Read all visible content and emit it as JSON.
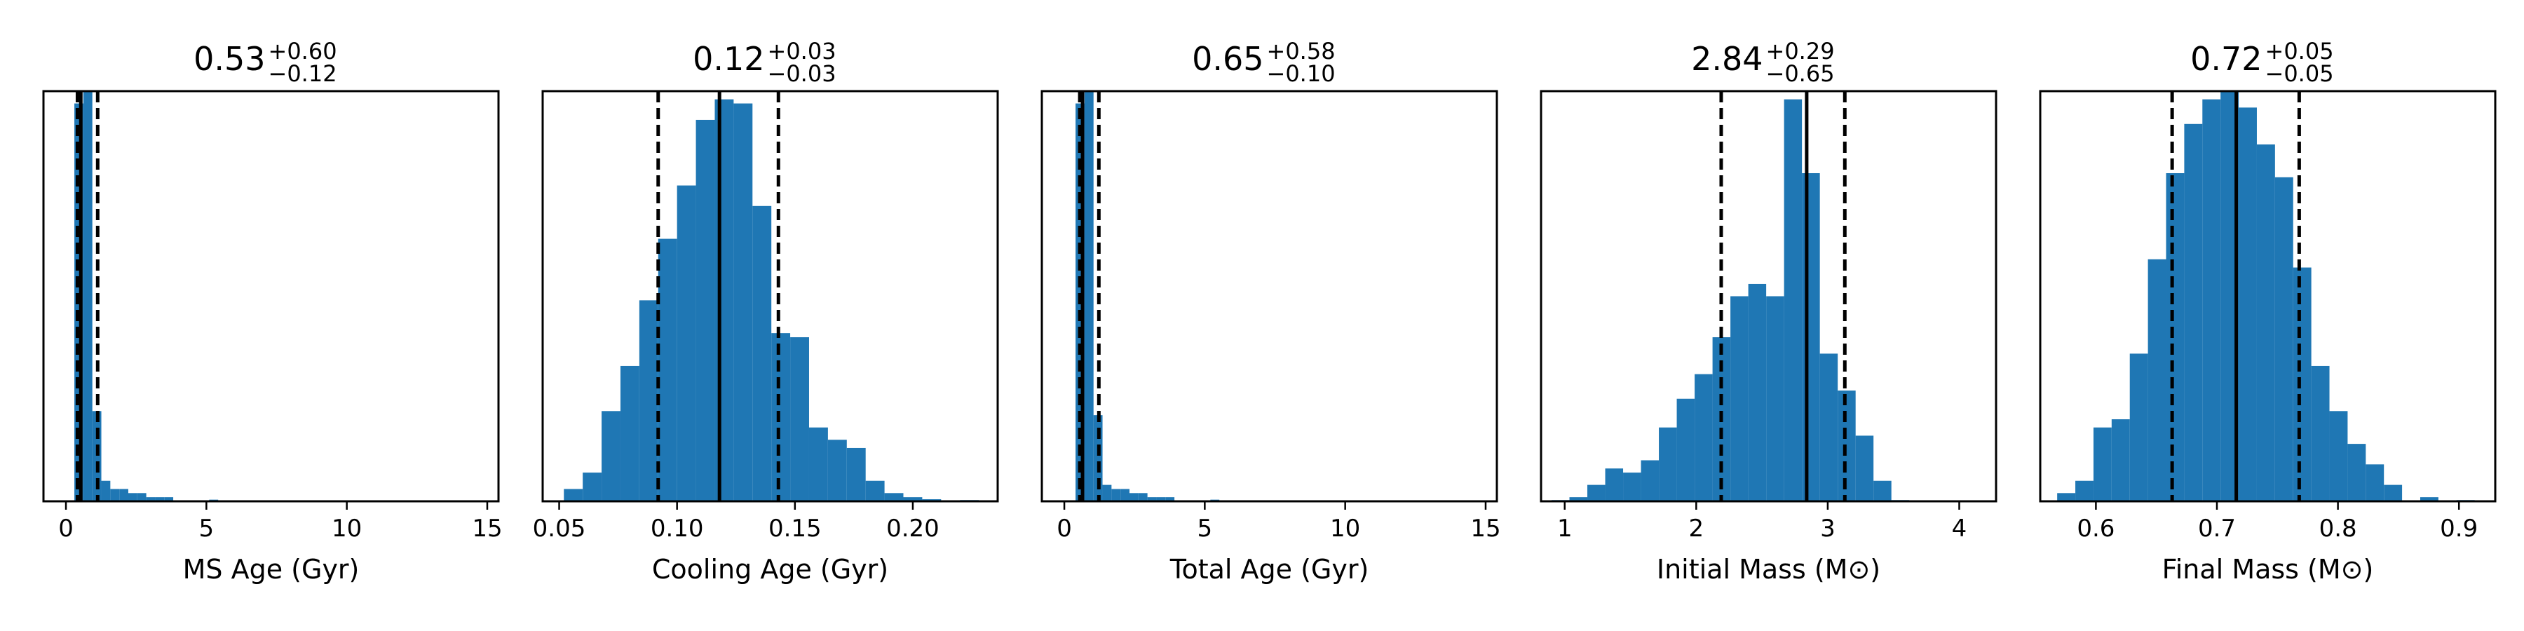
{
  "chart_data": [
    {
      "type": "histogram",
      "title": {
        "value": "0.53",
        "plus": "+0.60",
        "minus": "−0.12"
      },
      "xlabel": "MS Age (Gyr)",
      "xlim": [
        -0.8,
        15.4
      ],
      "ylim": [
        0,
        1.0
      ],
      "xticks": [
        0,
        5,
        10,
        15
      ],
      "xtick_labels": [
        "0",
        "5",
        "10",
        "15"
      ],
      "bin_edges": [
        0.3,
        0.62,
        0.94,
        1.26,
        1.58,
        1.9,
        2.22,
        2.54,
        2.86,
        3.18,
        3.5,
        3.82,
        4.14,
        4.46,
        4.78,
        5.1,
        5.42,
        5.74,
        6.06,
        6.38,
        6.7,
        7.02
      ],
      "counts": [
        0.97,
        1.0,
        0.22,
        0.05,
        0.03,
        0.03,
        0.02,
        0.02,
        0.01,
        0.01,
        0.01,
        0.0,
        0.0,
        0.0,
        0.0,
        0.004,
        0.0,
        0.0,
        0.0,
        0.0,
        0.0
      ],
      "median": 0.53,
      "lower": 0.41,
      "upper": 1.13,
      "bar_color": "#1f77b4"
    },
    {
      "type": "histogram",
      "title": {
        "value": "0.12",
        "plus": "+0.03",
        "minus": "−0.03"
      },
      "xlabel": "Cooling Age (Gyr)",
      "xlim": [
        0.043,
        0.236
      ],
      "ylim": [
        0,
        1.0
      ],
      "xticks": [
        0.05,
        0.1,
        0.15,
        0.2
      ],
      "xtick_labels": [
        "0.05",
        "0.10",
        "0.15",
        "0.20"
      ],
      "bin_edges": [
        0.052,
        0.06,
        0.068,
        0.076,
        0.084,
        0.092,
        0.1,
        0.108,
        0.116,
        0.124,
        0.132,
        0.14,
        0.148,
        0.156,
        0.164,
        0.172,
        0.18,
        0.188,
        0.196,
        0.204,
        0.212,
        0.22,
        0.228
      ],
      "counts": [
        0.03,
        0.07,
        0.22,
        0.33,
        0.49,
        0.64,
        0.77,
        0.93,
        0.98,
        0.97,
        0.72,
        0.41,
        0.4,
        0.18,
        0.15,
        0.13,
        0.05,
        0.02,
        0.01,
        0.005,
        0.0,
        0.003
      ],
      "median": 0.118,
      "lower": 0.092,
      "upper": 0.143,
      "bar_color": "#1f77b4"
    },
    {
      "type": "histogram",
      "title": {
        "value": "0.65",
        "plus": "+0.58",
        "minus": "−0.10"
      },
      "xlabel": "Total Age (Gyr)",
      "xlim": [
        -0.8,
        15.4
      ],
      "ylim": [
        0,
        1.0
      ],
      "xticks": [
        0,
        5,
        10,
        15
      ],
      "xtick_labels": [
        "0",
        "5",
        "10",
        "15"
      ],
      "bin_edges": [
        0.4,
        0.72,
        1.04,
        1.36,
        1.68,
        2.0,
        2.32,
        2.64,
        2.96,
        3.28,
        3.6,
        3.92,
        4.24,
        4.56,
        4.88,
        5.2,
        5.52,
        5.84,
        6.16,
        6.48,
        6.8,
        7.12
      ],
      "counts": [
        0.97,
        1.0,
        0.21,
        0.04,
        0.03,
        0.03,
        0.02,
        0.02,
        0.01,
        0.01,
        0.01,
        0.0,
        0.0,
        0.0,
        0.0,
        0.004,
        0.0,
        0.0,
        0.0,
        0.0,
        0.0
      ],
      "median": 0.65,
      "lower": 0.55,
      "upper": 1.23,
      "bar_color": "#1f77b4"
    },
    {
      "type": "histogram",
      "title": {
        "value": "2.84",
        "plus": "+0.29",
        "minus": "−0.65"
      },
      "xlabel": "Initial Mass (M⊙)",
      "xlim": [
        0.82,
        4.28
      ],
      "ylim": [
        0,
        1.0
      ],
      "xticks": [
        1,
        2,
        3,
        4
      ],
      "xtick_labels": [
        "1",
        "2",
        "3",
        "4"
      ],
      "bin_edges": [
        0.9,
        1.036,
        1.172,
        1.308,
        1.444,
        1.58,
        1.716,
        1.852,
        1.988,
        2.124,
        2.26,
        2.396,
        2.532,
        2.668,
        2.804,
        2.94,
        3.076,
        3.212,
        3.348,
        3.484,
        3.62,
        3.756,
        3.892,
        4.028
      ],
      "counts": [
        0.003,
        0.01,
        0.04,
        0.08,
        0.07,
        0.1,
        0.18,
        0.25,
        0.31,
        0.4,
        0.5,
        0.53,
        0.5,
        0.98,
        0.8,
        0.36,
        0.27,
        0.16,
        0.05,
        0.003,
        0.0,
        0.0,
        0.001
      ],
      "median": 2.84,
      "lower": 2.19,
      "upper": 3.13,
      "bar_color": "#1f77b4"
    },
    {
      "type": "histogram",
      "title": {
        "value": "0.72",
        "plus": "+0.05",
        "minus": "−0.05"
      },
      "xlabel": "Final Mass (M⊙)",
      "xlim": [
        0.554,
        0.93
      ],
      "ylim": [
        0,
        1.0
      ],
      "xticks": [
        0.6,
        0.7,
        0.8,
        0.9
      ],
      "xtick_labels": [
        "0.6",
        "0.7",
        "0.8",
        "0.9"
      ],
      "bin_edges": [
        0.568,
        0.583,
        0.598,
        0.613,
        0.628,
        0.643,
        0.658,
        0.673,
        0.688,
        0.703,
        0.718,
        0.733,
        0.748,
        0.763,
        0.778,
        0.793,
        0.808,
        0.823,
        0.838,
        0.853,
        0.868,
        0.883,
        0.898,
        0.913
      ],
      "counts": [
        0.02,
        0.05,
        0.18,
        0.2,
        0.36,
        0.59,
        0.8,
        0.92,
        0.98,
        1.0,
        0.96,
        0.87,
        0.79,
        0.57,
        0.33,
        0.22,
        0.14,
        0.09,
        0.04,
        0.0,
        0.01,
        0.0,
        0.003
      ],
      "median": 0.716,
      "lower": 0.663,
      "upper": 0.768,
      "bar_color": "#1f77b4"
    }
  ]
}
